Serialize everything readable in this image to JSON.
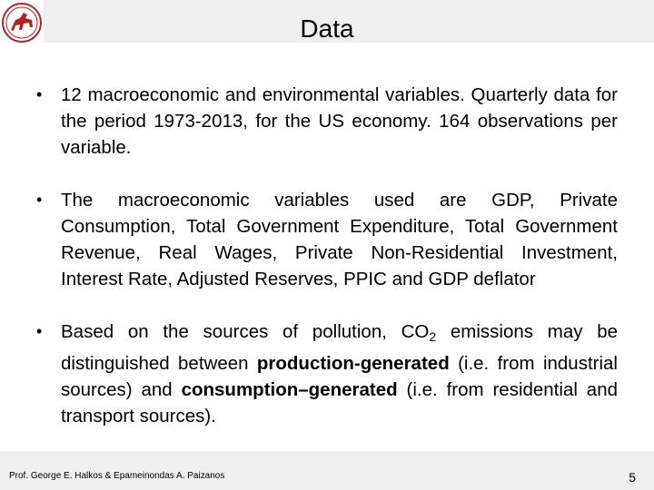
{
  "slide": {
    "title": "Data",
    "bullets": [
      {
        "text": "12 macroeconomic and environmental variables. Quarterly data for the period 1973-2013, for the US economy. 164 observations per variable."
      },
      {
        "text": "The macroeconomic variables used are GDP, Private Consumption, Total Government Expenditure, Total Government Revenue, Real Wages, Private Non-Residential Investment, Interest Rate, Adjusted Reserves, PPIC and GDP deflator"
      },
      {
        "part1": "Based on the sources of pollution, CO",
        "sub": "2",
        "part2": " emissions may be distinguished between ",
        "bold1": "production-generated",
        "part3": " (i.e. from industrial sources) and ",
        "bold2": "consumption–generated",
        "part4": " (i.e. from residential and transport sources)."
      }
    ]
  },
  "footer": {
    "authors": "Prof. George E. Halkos & Epameinondas A. Paizanos",
    "page_number": "5"
  },
  "logo": {
    "icon": "university-seal-icon",
    "color": "#b01f24"
  }
}
